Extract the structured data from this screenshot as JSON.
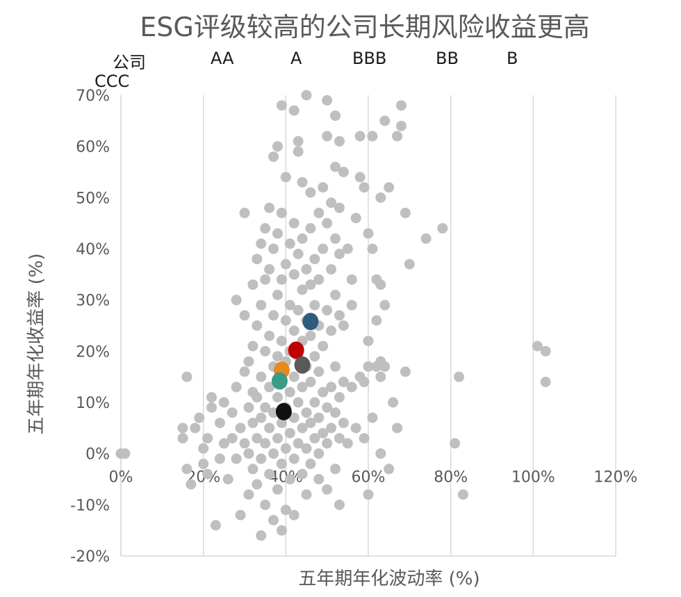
{
  "chart_data": {
    "type": "scatter",
    "title": "ESG评级较高的公司长期风险收益更高",
    "xlabel": "五年期年化波动率 (%)",
    "ylabel": "五年期年化收益率 (%)",
    "xlim": [
      0,
      120
    ],
    "ylim": [
      -20,
      70
    ],
    "x_ticks": [
      0,
      20,
      40,
      60,
      80,
      100,
      120
    ],
    "x_tick_labels": [
      "0%",
      "20%",
      "40%",
      "60%",
      "80%",
      "100%",
      "120%"
    ],
    "y_ticks": [
      -20,
      -10,
      0,
      10,
      20,
      30,
      40,
      50,
      60,
      70
    ],
    "y_tick_labels": [
      "-20%",
      "-10%",
      "0%",
      "10%",
      "20%",
      "30%",
      "40%",
      "50%",
      "60%",
      "70%"
    ],
    "grid": "vertical",
    "legend_position": "top",
    "legend": [
      {
        "name": "公司",
        "color": "#bfbfbf"
      },
      {
        "name": "AA",
        "color": "#2e5c7d"
      },
      {
        "name": "A",
        "color": "#c00000"
      },
      {
        "name": "BBB",
        "color": "#595959"
      },
      {
        "name": "BB",
        "color": "#e68a1e"
      },
      {
        "name": "B",
        "color": "#3a9b86"
      },
      {
        "name": "CCC",
        "color": "#111111"
      }
    ],
    "series": [
      {
        "name": "公司",
        "color": "#bfbfbf",
        "points": [
          [
            0,
            0
          ],
          [
            1,
            0
          ],
          [
            15,
            5
          ],
          [
            15,
            3
          ],
          [
            16,
            -3
          ],
          [
            17,
            -6
          ],
          [
            16,
            15
          ],
          [
            18,
            5
          ],
          [
            19,
            7
          ],
          [
            20,
            1
          ],
          [
            20,
            -2
          ],
          [
            21,
            3
          ],
          [
            21,
            -4
          ],
          [
            22,
            9
          ],
          [
            22,
            11
          ],
          [
            23,
            -14
          ],
          [
            24,
            -1
          ],
          [
            24,
            6
          ],
          [
            25,
            2
          ],
          [
            25,
            10
          ],
          [
            26,
            -5
          ],
          [
            27,
            3
          ],
          [
            27,
            8
          ],
          [
            28,
            -1
          ],
          [
            28,
            13
          ],
          [
            28,
            30
          ],
          [
            29,
            -12
          ],
          [
            29,
            5
          ],
          [
            30,
            2
          ],
          [
            30,
            16
          ],
          [
            30,
            27
          ],
          [
            30,
            47
          ],
          [
            31,
            -8
          ],
          [
            31,
            0
          ],
          [
            31,
            9
          ],
          [
            31,
            18
          ],
          [
            32,
            -3
          ],
          [
            32,
            6
          ],
          [
            32,
            12
          ],
          [
            32,
            21
          ],
          [
            32,
            33
          ],
          [
            33,
            -6
          ],
          [
            33,
            3
          ],
          [
            33,
            11
          ],
          [
            33,
            25
          ],
          [
            33,
            38
          ],
          [
            34,
            -16
          ],
          [
            34,
            -1
          ],
          [
            34,
            7
          ],
          [
            34,
            15
          ],
          [
            34,
            29
          ],
          [
            34,
            41
          ],
          [
            35,
            -10
          ],
          [
            35,
            2
          ],
          [
            35,
            9
          ],
          [
            35,
            20
          ],
          [
            35,
            34
          ],
          [
            35,
            44
          ],
          [
            36,
            -4
          ],
          [
            36,
            5
          ],
          [
            36,
            13
          ],
          [
            36,
            23
          ],
          [
            36,
            36
          ],
          [
            36,
            48
          ],
          [
            37,
            -13
          ],
          [
            37,
            0
          ],
          [
            37,
            8
          ],
          [
            37,
            17
          ],
          [
            37,
            27
          ],
          [
            37,
            40
          ],
          [
            37,
            58
          ],
          [
            38,
            -7
          ],
          [
            38,
            3
          ],
          [
            38,
            11
          ],
          [
            38,
            19
          ],
          [
            38,
            31
          ],
          [
            38,
            43
          ],
          [
            38,
            60
          ],
          [
            39,
            -15
          ],
          [
            39,
            -2
          ],
          [
            39,
            6
          ],
          [
            39,
            14
          ],
          [
            39,
            22
          ],
          [
            39,
            34
          ],
          [
            39,
            47
          ],
          [
            39,
            68
          ],
          [
            40,
            -11
          ],
          [
            40,
            1
          ],
          [
            40,
            9
          ],
          [
            40,
            18
          ],
          [
            40,
            26
          ],
          [
            40,
            37
          ],
          [
            40,
            54
          ],
          [
            41,
            -5
          ],
          [
            41,
            4
          ],
          [
            41,
            12
          ],
          [
            41,
            20
          ],
          [
            41,
            29
          ],
          [
            41,
            41
          ],
          [
            42,
            -12
          ],
          [
            42,
            -1
          ],
          [
            42,
            7
          ],
          [
            42,
            15
          ],
          [
            42,
            24
          ],
          [
            42,
            35
          ],
          [
            42,
            45
          ],
          [
            42,
            67
          ],
          [
            43,
            2
          ],
          [
            43,
            10
          ],
          [
            43,
            19
          ],
          [
            43,
            28
          ],
          [
            43,
            39
          ],
          [
            43,
            59
          ],
          [
            43,
            61
          ],
          [
            44,
            -4
          ],
          [
            44,
            5
          ],
          [
            44,
            13
          ],
          [
            44,
            22
          ],
          [
            44,
            32
          ],
          [
            44,
            42
          ],
          [
            44,
            53
          ],
          [
            45,
            -8
          ],
          [
            45,
            1
          ],
          [
            45,
            8
          ],
          [
            45,
            17
          ],
          [
            45,
            26
          ],
          [
            45,
            36
          ],
          [
            45,
            70
          ],
          [
            46,
            -2
          ],
          [
            46,
            6
          ],
          [
            46,
            14
          ],
          [
            46,
            23
          ],
          [
            46,
            33
          ],
          [
            46,
            44
          ],
          [
            46,
            51
          ],
          [
            47,
            3
          ],
          [
            47,
            10
          ],
          [
            47,
            19
          ],
          [
            47,
            29
          ],
          [
            47,
            38
          ],
          [
            48,
            -5
          ],
          [
            48,
            0
          ],
          [
            48,
            7
          ],
          [
            48,
            16
          ],
          [
            48,
            25
          ],
          [
            48,
            34
          ],
          [
            48,
            47
          ],
          [
            49,
            4
          ],
          [
            49,
            12
          ],
          [
            49,
            21
          ],
          [
            49,
            40
          ],
          [
            49,
            52
          ],
          [
            50,
            -7
          ],
          [
            50,
            2
          ],
          [
            50,
            9
          ],
          [
            50,
            28
          ],
          [
            50,
            45
          ],
          [
            50,
            62
          ],
          [
            50,
            69
          ],
          [
            51,
            5
          ],
          [
            51,
            13
          ],
          [
            51,
            24
          ],
          [
            51,
            36
          ],
          [
            51,
            49
          ],
          [
            52,
            -3
          ],
          [
            52,
            8
          ],
          [
            52,
            17
          ],
          [
            52,
            31
          ],
          [
            52,
            42
          ],
          [
            52,
            56
          ],
          [
            52,
            66
          ],
          [
            53,
            -10
          ],
          [
            53,
            3
          ],
          [
            53,
            11
          ],
          [
            53,
            27
          ],
          [
            53,
            39
          ],
          [
            53,
            48
          ],
          [
            53,
            61
          ],
          [
            54,
            6
          ],
          [
            54,
            14
          ],
          [
            54,
            25
          ],
          [
            54,
            55
          ],
          [
            55,
            2
          ],
          [
            55,
            40
          ],
          [
            56,
            13
          ],
          [
            56,
            29
          ],
          [
            56,
            34
          ],
          [
            57,
            5
          ],
          [
            57,
            46
          ],
          [
            58,
            15
          ],
          [
            58,
            54
          ],
          [
            58,
            62
          ],
          [
            59,
            3
          ],
          [
            59,
            14
          ],
          [
            59,
            52
          ],
          [
            60,
            17
          ],
          [
            60,
            22
          ],
          [
            60,
            43
          ],
          [
            60,
            -8
          ],
          [
            61,
            7
          ],
          [
            61,
            40
          ],
          [
            61,
            62
          ],
          [
            62,
            17
          ],
          [
            62,
            34
          ],
          [
            62,
            26
          ],
          [
            63,
            15
          ],
          [
            63,
            18
          ],
          [
            63,
            0
          ],
          [
            63,
            50
          ],
          [
            63,
            33
          ],
          [
            64,
            29
          ],
          [
            64,
            17
          ],
          [
            64,
            65
          ],
          [
            65,
            52
          ],
          [
            65,
            -3
          ],
          [
            66,
            10
          ],
          [
            67,
            62
          ],
          [
            67,
            5
          ],
          [
            68,
            68
          ],
          [
            68,
            64
          ],
          [
            69,
            47
          ],
          [
            69,
            16
          ],
          [
            70,
            37
          ],
          [
            74,
            42
          ],
          [
            78,
            44
          ],
          [
            81,
            2
          ],
          [
            82,
            15
          ],
          [
            83,
            -8
          ],
          [
            101,
            21
          ],
          [
            103,
            20
          ],
          [
            103,
            14
          ]
        ]
      },
      {
        "name": "AA",
        "color": "#2e5c7d",
        "points": [
          [
            46,
            25.8
          ]
        ]
      },
      {
        "name": "A",
        "color": "#c00000",
        "points": [
          [
            42.5,
            20.2
          ]
        ]
      },
      {
        "name": "BBB",
        "color": "#595959",
        "points": [
          [
            44,
            17.3
          ]
        ]
      },
      {
        "name": "BB",
        "color": "#e68a1e",
        "points": [
          [
            39,
            16.3
          ]
        ]
      },
      {
        "name": "B",
        "color": "#3a9b86",
        "points": [
          [
            38.5,
            14.2
          ]
        ]
      },
      {
        "name": "CCC",
        "color": "#111111",
        "points": [
          [
            39.5,
            8.2
          ]
        ]
      }
    ]
  }
}
